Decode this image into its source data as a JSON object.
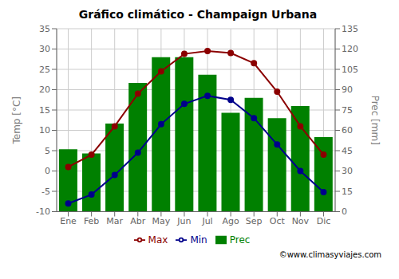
{
  "chart_data": {
    "type": "bar",
    "title": "Gráfico climático - Champaign Urbana",
    "categories": [
      "Ene",
      "Feb",
      "Mar",
      "Abr",
      "May",
      "Jun",
      "Jul",
      "Ago",
      "Sep",
      "Oct",
      "Nov",
      "Dic"
    ],
    "series": [
      {
        "name": "Prec",
        "type": "bar",
        "axis": "y2",
        "color": "#008000",
        "values": [
          46,
          43,
          65,
          95,
          114,
          114,
          101,
          73,
          84,
          69,
          78,
          55
        ]
      },
      {
        "name": "Min",
        "type": "line",
        "color": "#00008B",
        "marker": "circle",
        "values": [
          -8.0,
          -5.8,
          -1.0,
          4.5,
          11.5,
          16.5,
          18.5,
          17.5,
          13.0,
          6.5,
          0.0,
          -5.2
        ]
      },
      {
        "name": "Max",
        "type": "line",
        "color": "#8B0000",
        "marker": "circle",
        "values": [
          1.0,
          4.0,
          11.0,
          19.0,
          24.5,
          28.8,
          29.5,
          29.0,
          26.5,
          19.5,
          11.0,
          4.0
        ]
      }
    ],
    "ylabel": "Temp [°C]",
    "y2label": "Prec [mm]",
    "ylim": [
      -10,
      35
    ],
    "yticks": [
      -10,
      -5,
      0,
      5,
      10,
      15,
      20,
      25,
      30,
      35
    ],
    "y2lim": [
      0,
      135
    ],
    "y2ticks": [
      0,
      15,
      30,
      45,
      60,
      75,
      90,
      105,
      120,
      135
    ],
    "grid": true,
    "legend": "bottom",
    "annotations": [
      "©www.climasyviajes.com"
    ]
  }
}
